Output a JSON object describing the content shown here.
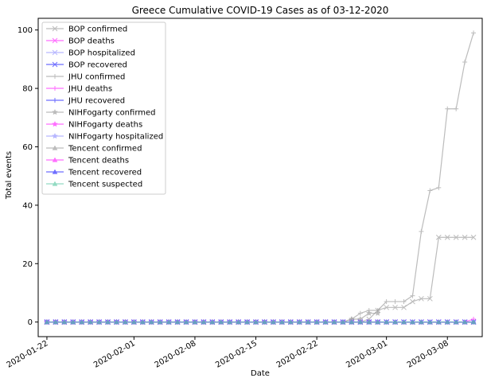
{
  "chart_data": {
    "type": "line",
    "title": "Greece Cumulative COVID-19 Cases as of 03-12-2020",
    "xlabel": "Date",
    "ylabel": "Total events",
    "x_start": "2020-01-22",
    "x_end": "2020-03-11",
    "xlim": [
      "2020-01-21",
      "2020-03-12"
    ],
    "ylim": [
      -5,
      104
    ],
    "x_ticks": [
      "2020-01-22",
      "2020-02-01",
      "2020-02-08",
      "2020-02-15",
      "2020-02-22",
      "2020-03-01",
      "2020-03-08"
    ],
    "y_ticks": [
      0,
      20,
      40,
      60,
      80,
      100
    ],
    "legend_position": "top-left",
    "series": [
      {
        "name": "BOP confirmed",
        "color": "#a0a0a0",
        "marker": "x",
        "points": [
          [
            "2020-01-22",
            0
          ],
          [
            "2020-02-26",
            0
          ],
          [
            "2020-02-27",
            0
          ],
          [
            "2020-02-28",
            1
          ],
          [
            "2020-02-29",
            4
          ],
          [
            "2020-03-01",
            5
          ],
          [
            "2020-03-02",
            5
          ],
          [
            "2020-03-03",
            5
          ],
          [
            "2020-03-04",
            7
          ],
          [
            "2020-03-05",
            8
          ],
          [
            "2020-03-06",
            8
          ],
          [
            "2020-03-07",
            29
          ],
          [
            "2020-03-08",
            29
          ],
          [
            "2020-03-09",
            29
          ],
          [
            "2020-03-10",
            29
          ],
          [
            "2020-03-11",
            29
          ]
        ]
      },
      {
        "name": "BOP deaths",
        "color": "#ff33ff",
        "marker": "x",
        "points": [
          [
            "2020-01-22",
            0
          ],
          [
            "2020-03-11",
            0
          ]
        ]
      },
      {
        "name": "BOP hospitalized",
        "color": "#9999ff",
        "marker": "x",
        "points": [
          [
            "2020-01-22",
            0
          ],
          [
            "2020-03-11",
            0
          ]
        ]
      },
      {
        "name": "BOP recovered",
        "color": "#3333ff",
        "marker": "x",
        "points": [
          [
            "2020-01-22",
            0
          ],
          [
            "2020-03-11",
            0
          ]
        ]
      },
      {
        "name": "JHU confirmed",
        "color": "#a0a0a0",
        "marker": "+",
        "points": [
          [
            "2020-01-22",
            0
          ],
          [
            "2020-02-25",
            0
          ],
          [
            "2020-02-26",
            1
          ],
          [
            "2020-02-27",
            3
          ],
          [
            "2020-02-28",
            4
          ],
          [
            "2020-02-29",
            4
          ],
          [
            "2020-03-01",
            7
          ],
          [
            "2020-03-02",
            7
          ],
          [
            "2020-03-03",
            7
          ],
          [
            "2020-03-04",
            9
          ],
          [
            "2020-03-05",
            31
          ],
          [
            "2020-03-06",
            45
          ],
          [
            "2020-03-07",
            46
          ],
          [
            "2020-03-08",
            73
          ],
          [
            "2020-03-09",
            73
          ],
          [
            "2020-03-10",
            89
          ],
          [
            "2020-03-11",
            99
          ]
        ]
      },
      {
        "name": "JHU deaths",
        "color": "#ff33ff",
        "marker": "+",
        "points": [
          [
            "2020-01-22",
            0
          ],
          [
            "2020-03-10",
            0
          ],
          [
            "2020-03-11",
            1
          ]
        ]
      },
      {
        "name": "JHU recovered",
        "color": "#3333ff",
        "marker": "+",
        "points": [
          [
            "2020-01-22",
            0
          ],
          [
            "2020-03-11",
            0
          ]
        ]
      },
      {
        "name": "NIHFogarty confirmed",
        "color": "#a0a0a0",
        "marker": "star",
        "points": [
          [
            "2020-01-22",
            0
          ],
          [
            "2020-02-25",
            0
          ],
          [
            "2020-02-26",
            1
          ],
          [
            "2020-02-27",
            1
          ],
          [
            "2020-02-28",
            3
          ],
          [
            "2020-02-29",
            3
          ]
        ]
      },
      {
        "name": "NIHFogarty deaths",
        "color": "#ff33ff",
        "marker": "star",
        "points": [
          [
            "2020-01-22",
            0
          ],
          [
            "2020-02-29",
            0
          ]
        ]
      },
      {
        "name": "NIHFogarty hospitalized",
        "color": "#9999ff",
        "marker": "star",
        "points": [
          [
            "2020-01-22",
            0
          ],
          [
            "2020-02-29",
            0
          ]
        ]
      },
      {
        "name": "Tencent confirmed",
        "color": "#a0a0a0",
        "marker": "triangle",
        "points": [
          [
            "2020-01-22",
            0
          ],
          [
            "2020-03-11",
            0
          ]
        ]
      },
      {
        "name": "Tencent deaths",
        "color": "#ff33ff",
        "marker": "triangle",
        "points": [
          [
            "2020-01-22",
            0
          ],
          [
            "2020-03-11",
            0
          ]
        ]
      },
      {
        "name": "Tencent recovered",
        "color": "#3333ff",
        "marker": "triangle",
        "points": [
          [
            "2020-01-22",
            0
          ],
          [
            "2020-03-11",
            0
          ]
        ]
      },
      {
        "name": "Tencent suspected",
        "color": "#66ccaa",
        "marker": "triangle",
        "points": [
          [
            "2020-01-22",
            0
          ],
          [
            "2020-03-11",
            0
          ]
        ]
      }
    ]
  }
}
